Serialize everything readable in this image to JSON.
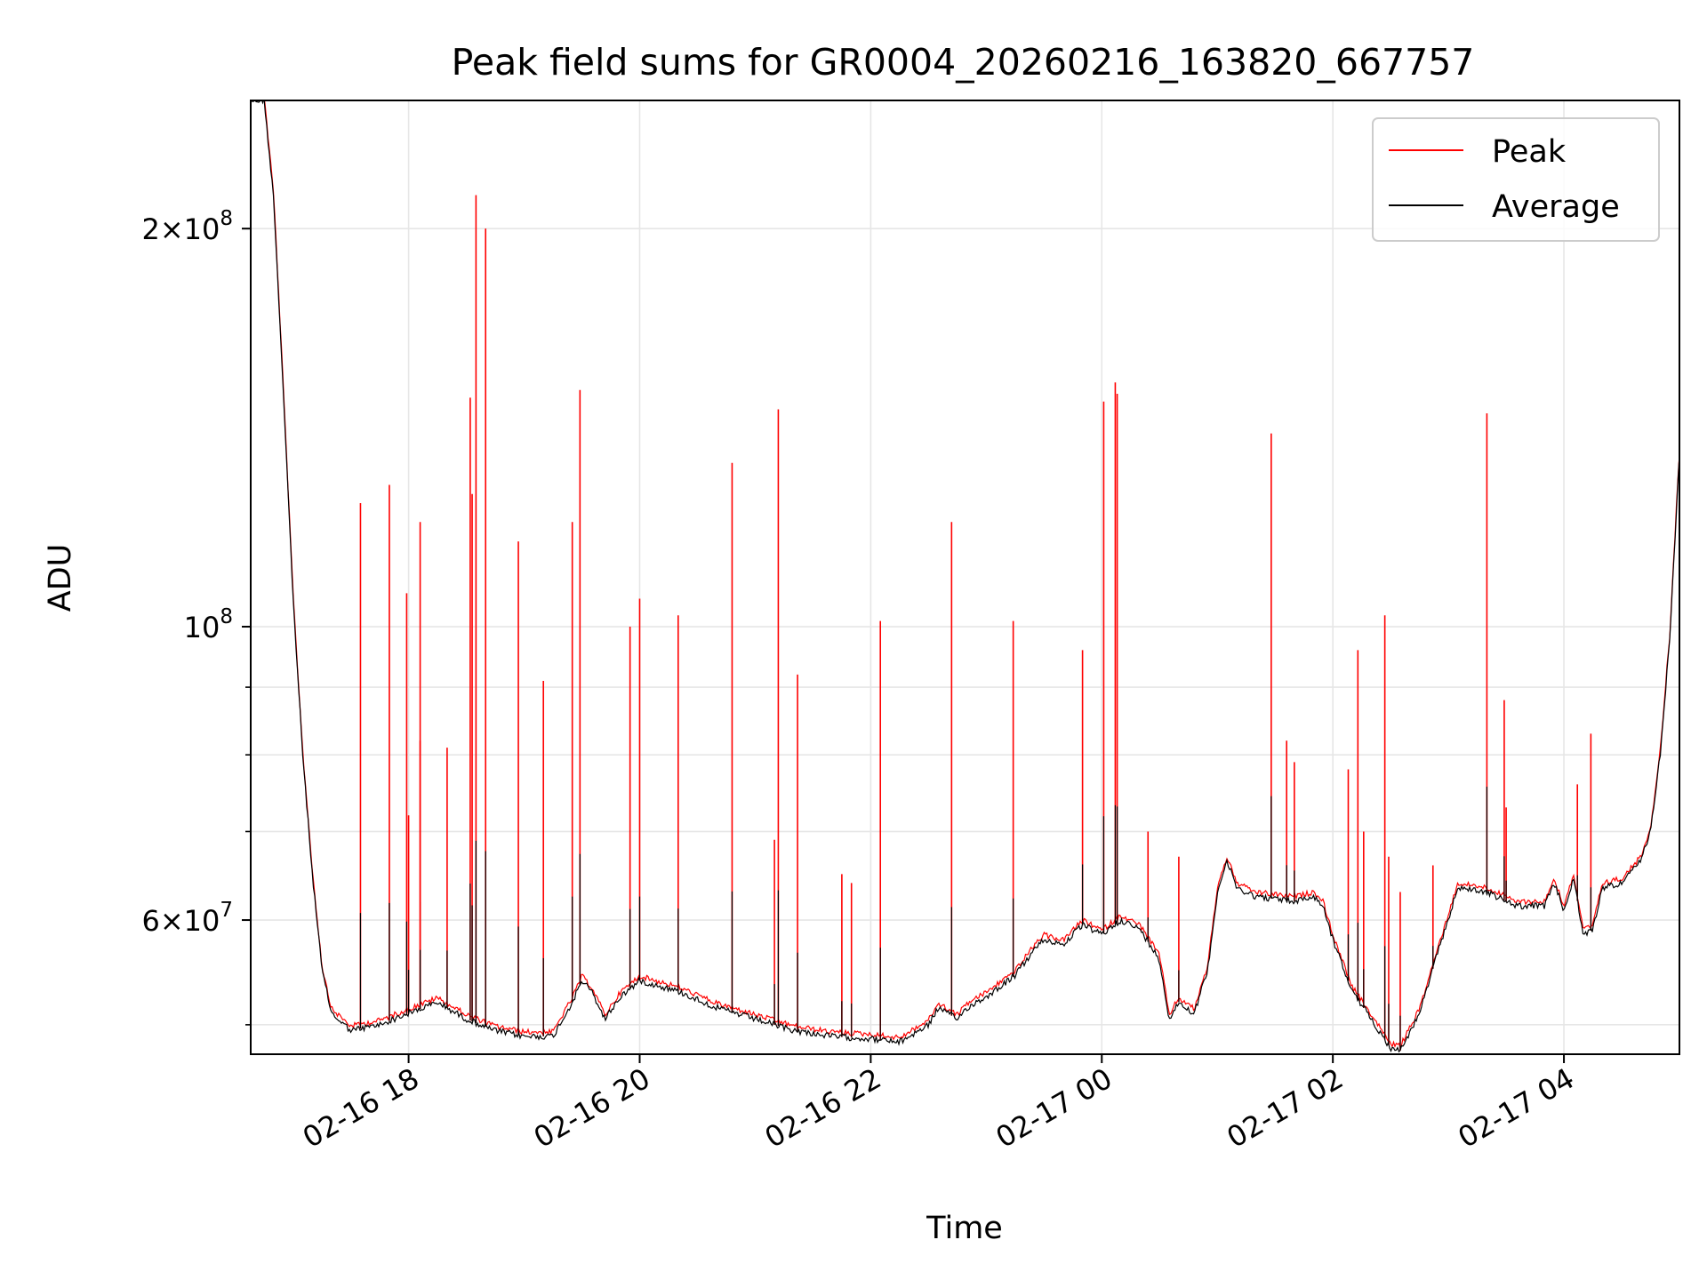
{
  "chart_data": {
    "type": "line",
    "title": "Peak field sums for GR0004_20260216_163820_667757",
    "xlabel": "Time",
    "ylabel": "ADU",
    "y_scale": "log",
    "ylim": [
      47500000,
      250000000
    ],
    "xlim": [
      "2026-02-16 16:38",
      "2026-02-17 05:00"
    ],
    "grid": true,
    "legend_position": "top-right",
    "x_ticks": [
      {
        "value": "2026-02-16 18:00",
        "label": "02-16 18"
      },
      {
        "value": "2026-02-16 20:00",
        "label": "02-16 20"
      },
      {
        "value": "2026-02-16 22:00",
        "label": "02-16 22"
      },
      {
        "value": "2026-02-17 00:00",
        "label": "02-17 00"
      },
      {
        "value": "2026-02-17 02:00",
        "label": "02-17 02"
      },
      {
        "value": "2026-02-17 04:00",
        "label": "02-17 04"
      }
    ],
    "y_ticks_major": [
      {
        "value": 60000000,
        "label_base": "6×10",
        "label_exp": "7"
      },
      {
        "value": 100000000,
        "label_base": "10",
        "label_exp": "8"
      },
      {
        "value": 200000000,
        "label_base": "2×10",
        "label_exp": "8"
      }
    ],
    "y_ticks_minor": [
      50000000,
      70000000,
      80000000,
      90000000
    ],
    "series": [
      {
        "name": "Peak",
        "color": "#ff0000"
      },
      {
        "name": "Average",
        "color": "#000000"
      }
    ],
    "average_baseline": [
      [
        "2026-02-16 16:38",
        250000000
      ],
      [
        "2026-02-16 16:45",
        250000000
      ],
      [
        "2026-02-16 16:50",
        210000000
      ],
      [
        "2026-02-16 16:55",
        150000000
      ],
      [
        "2026-02-16 17:00",
        105000000
      ],
      [
        "2026-02-16 17:05",
        80000000
      ],
      [
        "2026-02-16 17:10",
        65000000
      ],
      [
        "2026-02-16 17:15",
        55000000
      ],
      [
        "2026-02-16 17:20",
        51000000
      ],
      [
        "2026-02-16 17:30",
        49500000
      ],
      [
        "2026-02-16 17:45",
        50000000
      ],
      [
        "2026-02-16 18:00",
        51000000
      ],
      [
        "2026-02-16 18:15",
        52000000
      ],
      [
        "2026-02-16 18:30",
        50500000
      ],
      [
        "2026-02-16 18:45",
        49500000
      ],
      [
        "2026-02-16 19:00",
        49000000
      ],
      [
        "2026-02-16 19:15",
        49000000
      ],
      [
        "2026-02-16 19:25",
        52000000
      ],
      [
        "2026-02-16 19:30",
        54000000
      ],
      [
        "2026-02-16 19:35",
        53000000
      ],
      [
        "2026-02-16 19:42",
        50500000
      ],
      [
        "2026-02-16 19:50",
        52500000
      ],
      [
        "2026-02-16 20:00",
        54000000
      ],
      [
        "2026-02-16 20:20",
        53000000
      ],
      [
        "2026-02-16 20:40",
        51500000
      ],
      [
        "2026-02-16 21:00",
        50500000
      ],
      [
        "2026-02-16 21:20",
        49500000
      ],
      [
        "2026-02-16 21:40",
        49000000
      ],
      [
        "2026-02-16 22:00",
        48800000
      ],
      [
        "2026-02-16 22:15",
        48500000
      ],
      [
        "2026-02-16 22:30",
        50000000
      ],
      [
        "2026-02-16 22:35",
        51500000
      ],
      [
        "2026-02-16 22:45",
        50500000
      ],
      [
        "2026-02-16 22:50",
        51500000
      ],
      [
        "2026-02-16 23:00",
        52500000
      ],
      [
        "2026-02-16 23:15",
        54500000
      ],
      [
        "2026-02-16 23:25",
        57000000
      ],
      [
        "2026-02-16 23:30",
        58000000
      ],
      [
        "2026-02-16 23:40",
        57500000
      ],
      [
        "2026-02-16 23:50",
        59500000
      ],
      [
        "2026-02-17 00:00",
        58500000
      ],
      [
        "2026-02-17 00:10",
        60000000
      ],
      [
        "2026-02-17 00:20",
        59000000
      ],
      [
        "2026-02-17 00:30",
        56000000
      ],
      [
        "2026-02-17 00:35",
        50500000
      ],
      [
        "2026-02-17 00:40",
        52000000
      ],
      [
        "2026-02-17 00:48",
        51000000
      ],
      [
        "2026-02-17 00:55",
        55000000
      ],
      [
        "2026-02-17 01:00",
        63000000
      ],
      [
        "2026-02-17 01:05",
        66500000
      ],
      [
        "2026-02-17 01:10",
        63500000
      ],
      [
        "2026-02-17 01:20",
        62500000
      ],
      [
        "2026-02-17 01:40",
        62000000
      ],
      [
        "2026-02-17 01:50",
        62500000
      ],
      [
        "2026-02-17 01:55",
        61500000
      ],
      [
        "2026-02-17 02:00",
        58000000
      ],
      [
        "2026-02-17 02:10",
        53000000
      ],
      [
        "2026-02-17 02:20",
        50500000
      ],
      [
        "2026-02-17 02:30",
        48000000
      ],
      [
        "2026-02-17 02:35",
        47800000
      ],
      [
        "2026-02-17 02:45",
        51000000
      ],
      [
        "2026-02-17 02:55",
        57000000
      ],
      [
        "2026-02-17 03:05",
        63500000
      ],
      [
        "2026-02-17 03:20",
        63000000
      ],
      [
        "2026-02-17 03:35",
        61500000
      ],
      [
        "2026-02-17 03:50",
        61500000
      ],
      [
        "2026-02-17 03:55",
        64000000
      ],
      [
        "2026-02-17 04:00",
        61000000
      ],
      [
        "2026-02-17 04:05",
        64500000
      ],
      [
        "2026-02-17 04:10",
        58500000
      ],
      [
        "2026-02-17 04:15",
        59000000
      ],
      [
        "2026-02-17 04:20",
        63500000
      ],
      [
        "2026-02-17 04:30",
        64000000
      ],
      [
        "2026-02-17 04:40",
        66500000
      ],
      [
        "2026-02-17 04:45",
        70000000
      ],
      [
        "2026-02-17 04:50",
        80000000
      ],
      [
        "2026-02-17 04:55",
        98000000
      ],
      [
        "2026-02-17 05:00",
        135000000
      ]
    ],
    "peak_spikes": [
      [
        "2026-02-16 17:35",
        124000000
      ],
      [
        "2026-02-16 17:50",
        128000000
      ],
      [
        "2026-02-16 17:59",
        106000000
      ],
      [
        "2026-02-16 18:00",
        72000000
      ],
      [
        "2026-02-16 18:06",
        120000000
      ],
      [
        "2026-02-16 18:06",
        82000000
      ],
      [
        "2026-02-16 18:20",
        81000000
      ],
      [
        "2026-02-16 18:32",
        149000000
      ],
      [
        "2026-02-16 18:33",
        126000000
      ],
      [
        "2026-02-16 18:35",
        212000000
      ],
      [
        "2026-02-16 18:40",
        200000000
      ],
      [
        "2026-02-16 18:57",
        116000000
      ],
      [
        "2026-02-16 19:10",
        91000000
      ],
      [
        "2026-02-16 19:25",
        120000000
      ],
      [
        "2026-02-16 19:29",
        151000000
      ],
      [
        "2026-02-16 19:55",
        100000000
      ],
      [
        "2026-02-16 20:00",
        105000000
      ],
      [
        "2026-02-16 20:20",
        102000000
      ],
      [
        "2026-02-16 20:48",
        133000000
      ],
      [
        "2026-02-16 21:10",
        69000000
      ],
      [
        "2026-02-16 21:12",
        146000000
      ],
      [
        "2026-02-16 21:22",
        92000000
      ],
      [
        "2026-02-16 21:45",
        65000000
      ],
      [
        "2026-02-16 21:50",
        64000000
      ],
      [
        "2026-02-16 22:05",
        101000000
      ],
      [
        "2026-02-16 22:42",
        120000000
      ],
      [
        "2026-02-16 23:14",
        101000000
      ],
      [
        "2026-02-16 23:50",
        96000000
      ],
      [
        "2026-02-17 00:01",
        148000000
      ],
      [
        "2026-02-17 00:07",
        153000000
      ],
      [
        "2026-02-17 00:08",
        150000000
      ],
      [
        "2026-02-17 00:24",
        70000000
      ],
      [
        "2026-02-17 00:40",
        67000000
      ],
      [
        "2026-02-17 01:28",
        140000000
      ],
      [
        "2026-02-17 01:36",
        82000000
      ],
      [
        "2026-02-17 01:40",
        79000000
      ],
      [
        "2026-02-17 02:08",
        78000000
      ],
      [
        "2026-02-17 02:13",
        96000000
      ],
      [
        "2026-02-17 02:16",
        70000000
      ],
      [
        "2026-02-17 02:27",
        102000000
      ],
      [
        "2026-02-17 02:29",
        67000000
      ],
      [
        "2026-02-17 02:35",
        63000000
      ],
      [
        "2026-02-17 02:52",
        66000000
      ],
      [
        "2026-02-17 03:20",
        145000000
      ],
      [
        "2026-02-17 03:29",
        88000000
      ],
      [
        "2026-02-17 03:30",
        73000000
      ],
      [
        "2026-02-17 04:07",
        76000000
      ],
      [
        "2026-02-17 04:14",
        83000000
      ]
    ]
  }
}
